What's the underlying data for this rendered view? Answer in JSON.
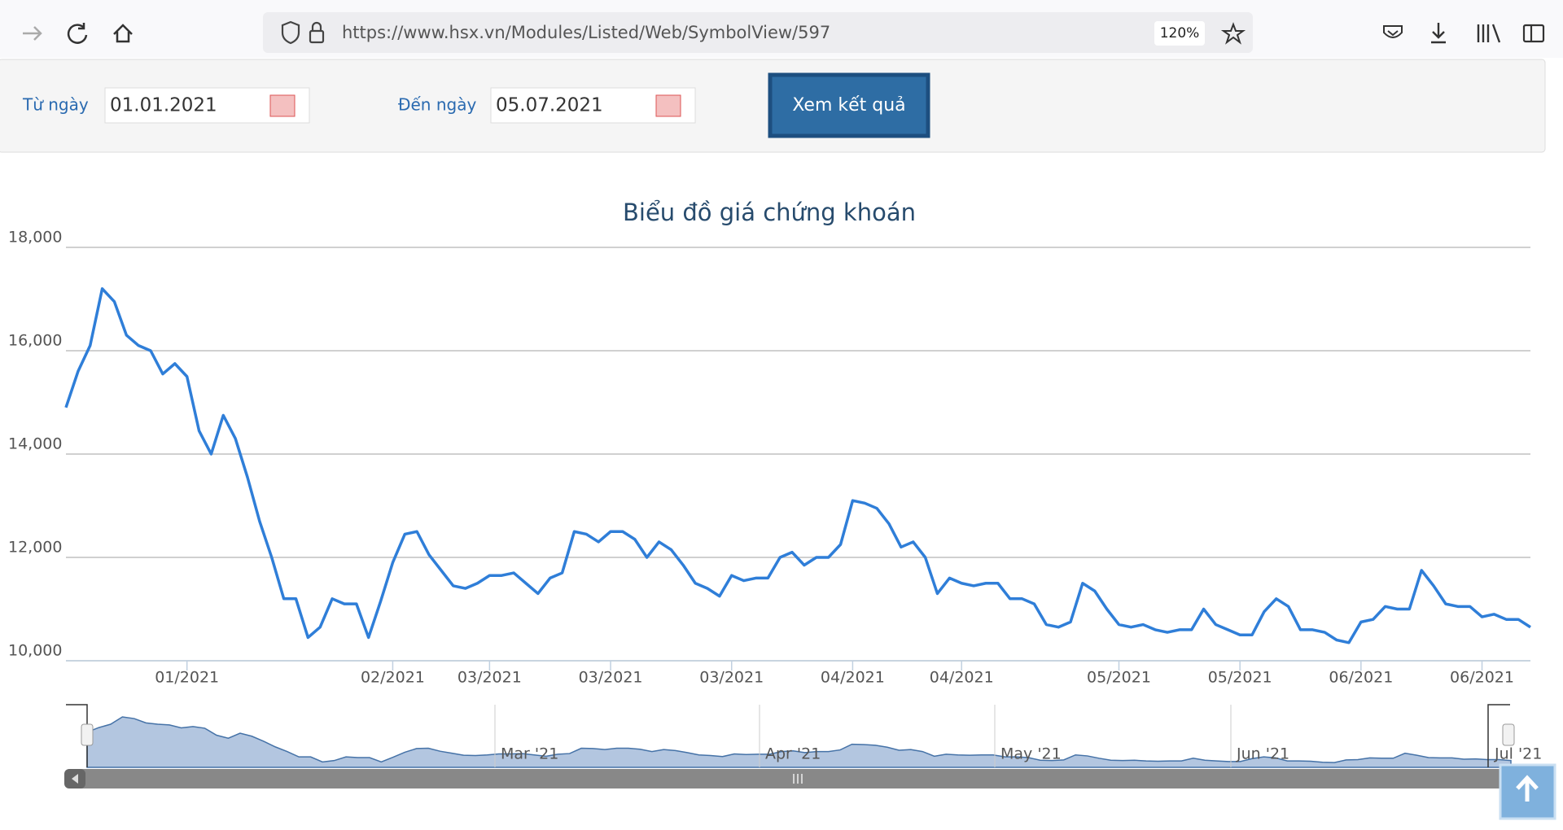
{
  "browser": {
    "url": "https://www.hsx.vn/Modules/Listed/Web/SymbolView/597",
    "zoom": "120%"
  },
  "form": {
    "from_label": "Từ ngày",
    "from_value": "01.01.2021",
    "to_label": "Đến ngày",
    "to_value": "05.07.2021",
    "button": "Xem kết quả"
  },
  "chart_data": {
    "type": "line",
    "title": "Biểu đồ giá chứng khoán",
    "color": "#2f7ed8",
    "grid": true,
    "values": [
      14900,
      15600,
      16100,
      17200,
      16950,
      16300,
      16100,
      16000,
      15550,
      15750,
      15500,
      14450,
      14000,
      14750,
      14300,
      13550,
      12700,
      12000,
      11200,
      11200,
      10450,
      10650,
      11200,
      11100,
      11100,
      10450,
      11150,
      11900,
      12450,
      12500,
      12050,
      11750,
      11450,
      11400,
      11500,
      11650,
      11650,
      11700,
      11500,
      11300,
      11600,
      11700,
      12500,
      12450,
      12300,
      12500,
      12500,
      12350,
      12000,
      12300,
      12150,
      11850,
      11500,
      11400,
      11250,
      11650,
      11550,
      11600,
      11600,
      12000,
      12100,
      11850,
      12000,
      12000,
      12250,
      13100,
      13050,
      12950,
      12650,
      12200,
      12300,
      12000,
      11300,
      11600,
      11500,
      11450,
      11500,
      11500,
      11200,
      11200,
      11100,
      10700,
      10650,
      10750,
      11500,
      11350,
      11000,
      10700,
      10650,
      10700,
      10600,
      10550,
      10600,
      10600,
      11000,
      10700,
      10600,
      10500,
      10500,
      10950,
      11200,
      11050,
      10600,
      10600,
      10550,
      10400,
      10350,
      10750,
      10800,
      11050,
      11000,
      11000,
      11750,
      11450,
      11100,
      11050,
      11050,
      10850,
      10900,
      10800,
      10800,
      10650
    ],
    "xlim": [
      0,
      121
    ],
    "xticks": [
      {
        "value": 10,
        "label": "01/2021"
      },
      {
        "value": 27,
        "label": "02/2021"
      },
      {
        "value": 35,
        "label": "03/2021"
      },
      {
        "value": 45,
        "label": "03/2021"
      },
      {
        "value": 55,
        "label": "03/2021"
      },
      {
        "value": 65,
        "label": "04/2021"
      },
      {
        "value": 74,
        "label": "04/2021"
      },
      {
        "value": 87,
        "label": "05/2021"
      },
      {
        "value": 97,
        "label": "05/2021"
      },
      {
        "value": 107,
        "label": "06/2021"
      },
      {
        "value": 117,
        "label": "06/2021"
      }
    ],
    "ylim": [
      10000,
      18000
    ],
    "yticks": [
      {
        "value": 10000,
        "label": "10,000"
      },
      {
        "value": 12000,
        "label": "12,000"
      },
      {
        "value": 14000,
        "label": "14,000"
      },
      {
        "value": 16000,
        "label": "16,000"
      },
      {
        "value": 18000,
        "label": "18,000"
      }
    ],
    "navigator_labels": [
      "Mar '21",
      "Apr '21",
      "May '21",
      "Jun '21",
      "Jul '21"
    ]
  }
}
